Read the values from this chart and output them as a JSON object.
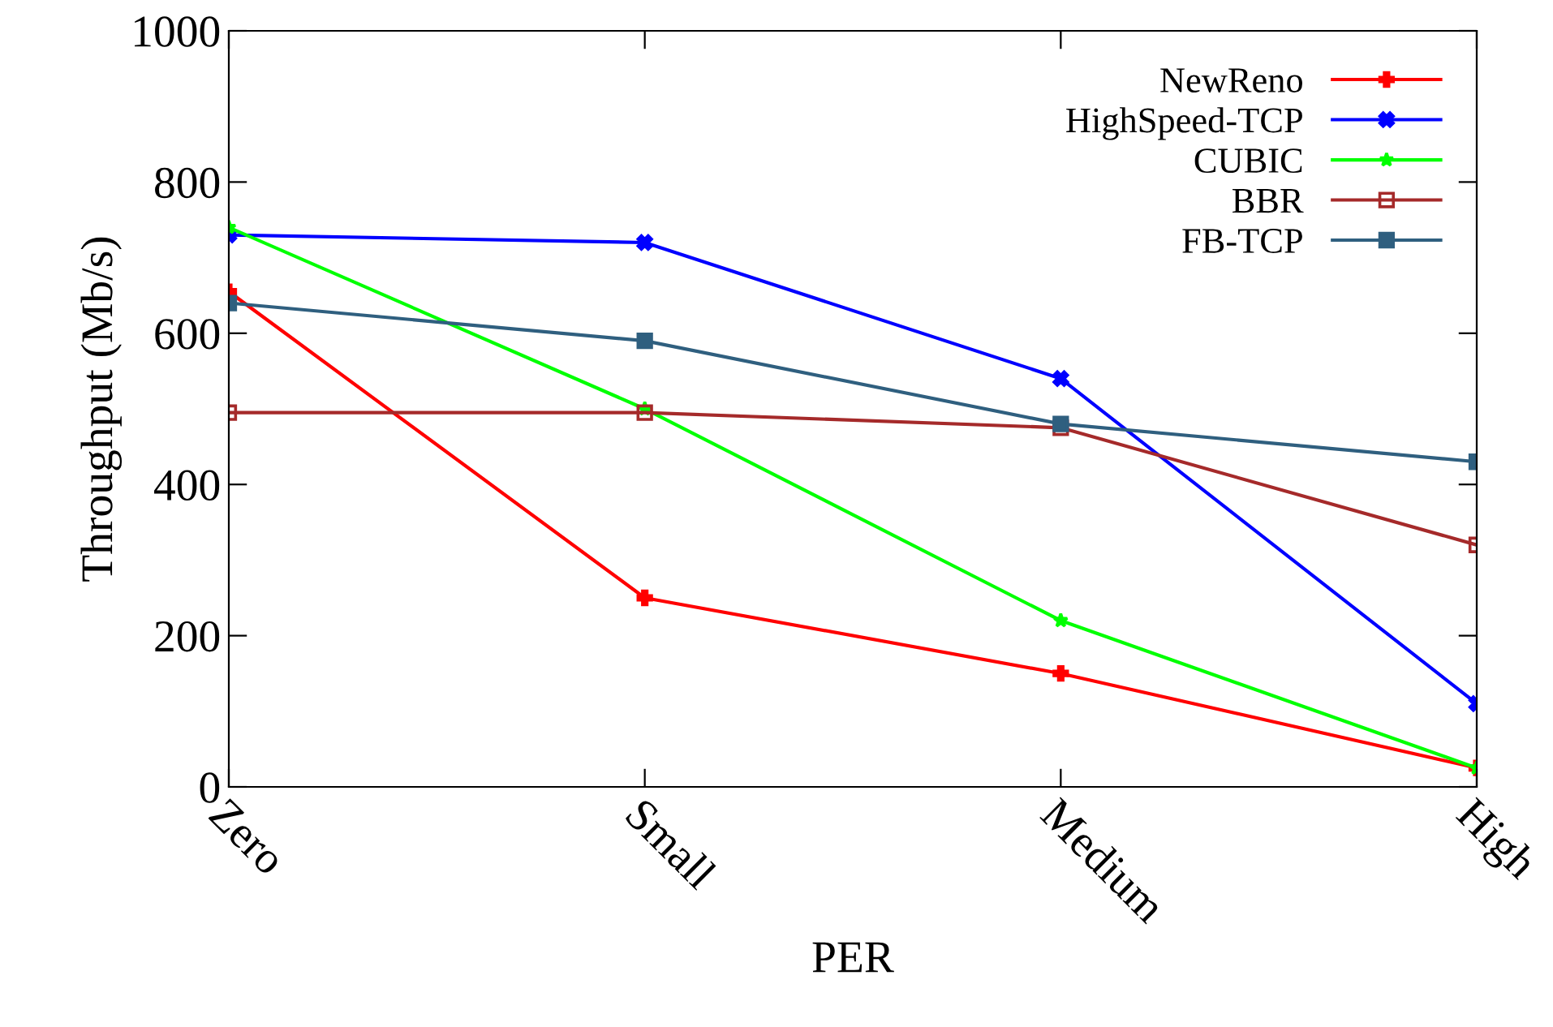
{
  "chart_data": {
    "type": "line",
    "xlabel": "PER",
    "ylabel": "Throughput (Mb/s)",
    "categories": [
      "Zero",
      "Small",
      "Medium",
      "High"
    ],
    "ylim": [
      0,
      1000
    ],
    "yticks": [
      0,
      200,
      400,
      600,
      800,
      1000
    ],
    "grid": false,
    "legend": "top right",
    "line_style": "solid",
    "series": [
      {
        "name": "NewReno",
        "color": "#ff0000",
        "marker": "plus",
        "values": [
          655,
          250,
          150,
          25
        ]
      },
      {
        "name": "HighSpeed-TCP",
        "color": "#0000ff",
        "marker": "cross",
        "values": [
          730,
          720,
          540,
          110
        ]
      },
      {
        "name": "CUBIC",
        "color": "#00ff00",
        "marker": "star",
        "values": [
          740,
          500,
          220,
          25
        ]
      },
      {
        "name": "BBR",
        "color": "#a52a2a",
        "marker": "square_open",
        "values": [
          495,
          495,
          475,
          320
        ]
      },
      {
        "name": "FB-TCP",
        "color": "#2f5f7f",
        "marker": "square",
        "values": [
          640,
          590,
          480,
          430
        ]
      }
    ]
  }
}
